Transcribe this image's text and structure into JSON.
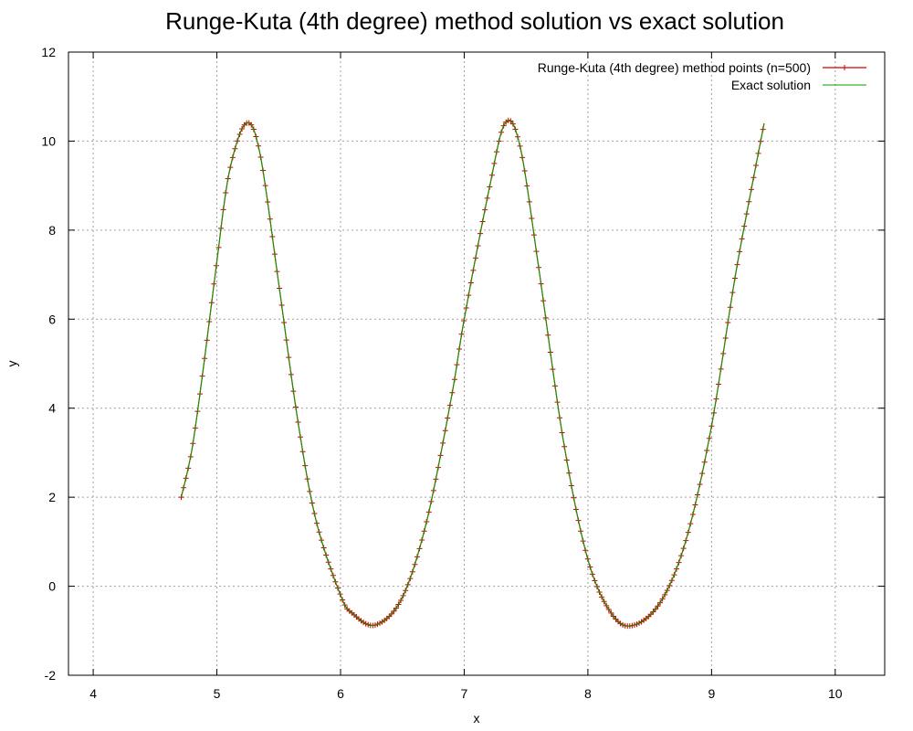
{
  "chart_data": {
    "type": "line",
    "title": "Runge-Kuta (4th degree) method solution vs exact solution",
    "xlabel": "x",
    "ylabel": "y",
    "xlim": [
      3.8,
      10.4
    ],
    "ylim": [
      -2,
      12
    ],
    "xticks": [
      "4",
      "5",
      "6",
      "7",
      "8",
      "9",
      "10"
    ],
    "yticks": [
      "-2",
      "0",
      "2",
      "4",
      "6",
      "8",
      "10",
      "12"
    ],
    "grid": true,
    "legend_position": "top-right",
    "series": [
      {
        "name": "Runge-Kuta (4th degree) method points (n=500)",
        "style": "line-with-plus-markers",
        "color": "#cc0000",
        "x_range": [
          4.712,
          9.425
        ],
        "n_points": 500,
        "x": [
          4.712,
          4.8,
          4.9,
          5.0,
          5.1,
          5.236,
          5.35,
          5.5,
          5.65,
          5.8,
          6.0,
          6.1,
          6.283,
          6.5,
          6.7,
          6.9,
          7.0,
          7.2,
          7.33,
          7.45,
          7.6,
          7.8,
          8.0,
          8.2,
          8.378,
          8.6,
          8.8,
          9.0,
          9.2,
          9.425
        ],
        "y": [
          2.0,
          3.1,
          5.1,
          7.3,
          9.3,
          10.4,
          9.7,
          6.8,
          3.8,
          1.5,
          -0.2,
          -0.62,
          -0.87,
          -0.25,
          1.5,
          4.3,
          6.0,
          8.9,
          10.4,
          9.9,
          7.2,
          3.3,
          0.6,
          -0.65,
          -0.87,
          -0.3,
          1.1,
          3.6,
          7.1,
          10.4
        ]
      },
      {
        "name": "Exact solution",
        "style": "line",
        "color": "#00a000",
        "x_range": [
          4.712,
          9.425
        ],
        "x": [
          4.712,
          4.8,
          4.9,
          5.0,
          5.1,
          5.236,
          5.35,
          5.5,
          5.65,
          5.8,
          6.0,
          6.1,
          6.283,
          6.5,
          6.7,
          6.9,
          7.0,
          7.2,
          7.33,
          7.45,
          7.6,
          7.8,
          8.0,
          8.2,
          8.378,
          8.6,
          8.8,
          9.0,
          9.2,
          9.425
        ],
        "y": [
          2.0,
          3.1,
          5.1,
          7.3,
          9.3,
          10.4,
          9.7,
          6.8,
          3.8,
          1.5,
          -0.2,
          -0.62,
          -0.87,
          -0.25,
          1.5,
          4.3,
          6.0,
          8.9,
          10.4,
          9.9,
          7.2,
          3.3,
          0.6,
          -0.65,
          -0.87,
          -0.3,
          1.1,
          3.6,
          7.1,
          10.4
        ]
      }
    ]
  }
}
